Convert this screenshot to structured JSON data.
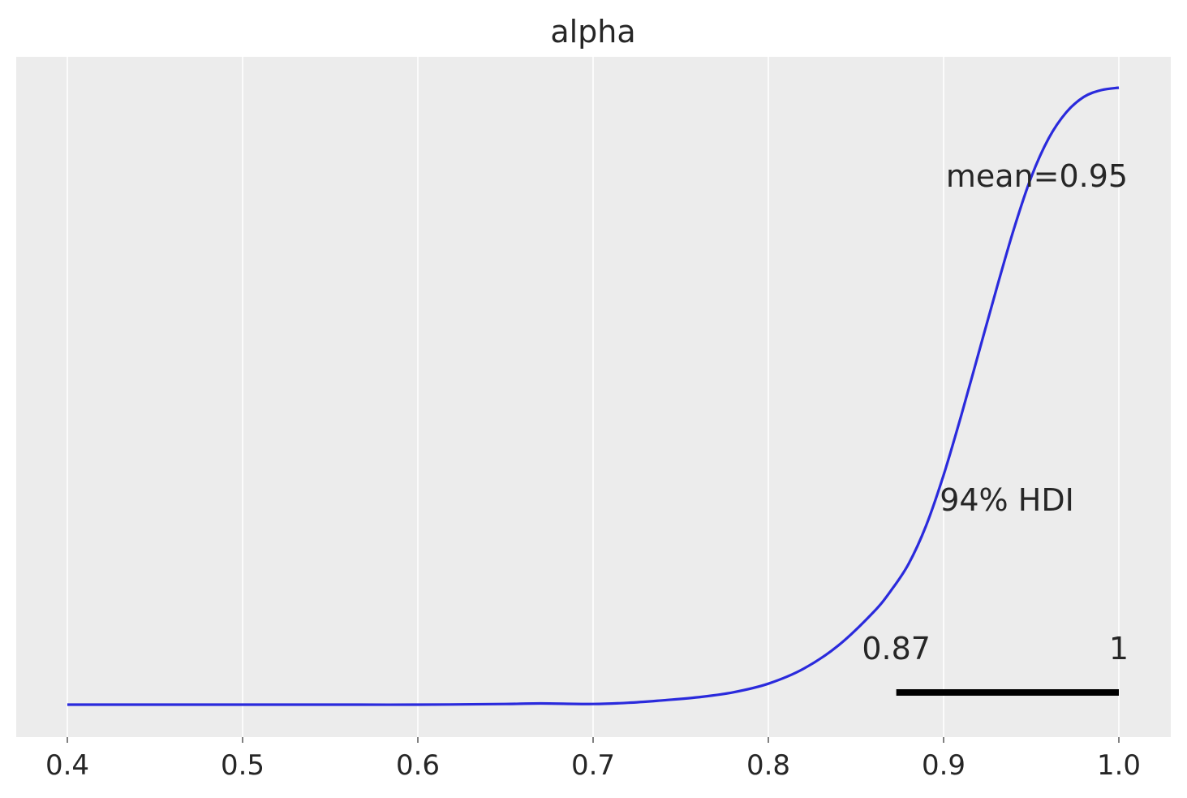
{
  "chart_data": {
    "type": "line",
    "title": "alpha",
    "xlabel": "",
    "ylabel": "",
    "xlim": [
      0.372,
      1.03
    ],
    "x_ticks": [
      0.4,
      0.5,
      0.6,
      0.7,
      0.8,
      0.9,
      1.0
    ],
    "x_tick_labels": [
      "0.4",
      "0.5",
      "0.6",
      "0.7",
      "0.8",
      "0.9",
      "1.0"
    ],
    "y_ticks_visible": false,
    "grid": "vertical",
    "series": [
      {
        "color": "#2a2adc",
        "x": [
          0.4,
          0.45,
          0.5,
          0.55,
          0.6,
          0.65,
          0.67,
          0.7,
          0.72,
          0.74,
          0.76,
          0.78,
          0.8,
          0.82,
          0.84,
          0.86,
          0.87,
          0.88,
          0.89,
          0.9,
          0.91,
          0.92,
          0.93,
          0.94,
          0.95,
          0.96,
          0.97,
          0.98,
          0.99,
          1.0
        ],
        "y": [
          0.0,
          0.0,
          0.0,
          0.0,
          0.0,
          0.001,
          0.002,
          0.001,
          0.003,
          0.007,
          0.012,
          0.02,
          0.034,
          0.058,
          0.096,
          0.15,
          0.185,
          0.228,
          0.29,
          0.372,
          0.468,
          0.57,
          0.672,
          0.77,
          0.855,
          0.918,
          0.96,
          0.985,
          0.996,
          1.0
        ]
      }
    ],
    "annotations": {
      "mean_label": "mean=0.95",
      "hdi_label": "94% HDI",
      "hdi_low": 0.873,
      "hdi_high": 1.0,
      "hdi_low_label": "0.87",
      "hdi_high_label": "1"
    },
    "colors": {
      "panel_background": "#ececec",
      "grid": "#ffffff",
      "hdi_bar": "#000000",
      "text": "#262626"
    }
  }
}
